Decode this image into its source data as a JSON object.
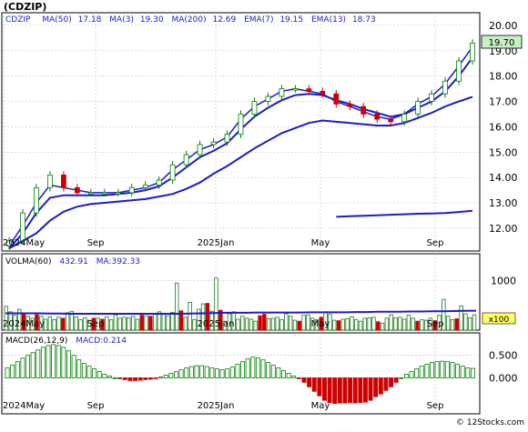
{
  "header": {
    "symbol": "(CDZIP)"
  },
  "footer": {
    "credit": "© 12Stocks.com"
  },
  "price_panel": {
    "ticker_label": "CDZIP",
    "indicators": [
      {
        "name": "MA(50)",
        "value": "17.18"
      },
      {
        "name": "MA(3)",
        "value": "19.30"
      },
      {
        "name": "MA(200)",
        "value": "12.69"
      },
      {
        "name": "EMA(7)",
        "value": "19.15"
      },
      {
        "name": "EMA(13)",
        "value": "18.73"
      }
    ],
    "last_price": "19.70"
  },
  "volume_panel": {
    "label": "VOLMA(60)",
    "value": "432.91",
    "ma_label": "MA:392.33",
    "scale": "x100"
  },
  "macd_panel": {
    "label": "MACD(26,12,9)",
    "value_label": "MACD:0.214"
  },
  "colors": {
    "up": "#008000",
    "down": "#cc0000",
    "ma_blue": "#1c1ccc",
    "volume_up": "#1a7a1a",
    "grid": "#c8c8c8",
    "price_box": "#c8f0c8"
  },
  "chart_data": [
    {
      "type": "line",
      "title": "CDZIP",
      "x_tick_labels": [
        "2024May",
        "Sep",
        "2025Jan",
        "May",
        "Sep"
      ],
      "y_tick_labels": [
        "12.00",
        "13.00",
        "14.00",
        "15.00",
        "16.00",
        "17.00",
        "18.00",
        "19.00",
        "20.00"
      ],
      "ylim": [
        11.1,
        20.5
      ],
      "x": [
        "2024-05-01",
        "2024-05-15",
        "2024-06-01",
        "2024-06-15",
        "2024-07-01",
        "2024-07-15",
        "2024-08-01",
        "2024-08-15",
        "2024-09-01",
        "2024-09-15",
        "2024-10-01",
        "2024-10-15",
        "2024-11-01",
        "2024-11-15",
        "2024-12-01",
        "2024-12-15",
        "2025-01-01",
        "2025-01-15",
        "2025-02-01",
        "2025-02-15",
        "2025-03-01",
        "2025-03-15",
        "2025-04-01",
        "2025-04-15",
        "2025-05-01",
        "2025-05-15",
        "2025-06-01",
        "2025-06-15",
        "2025-07-01",
        "2025-07-15",
        "2025-08-01",
        "2025-08-15",
        "2025-09-01",
        "2025-09-15",
        "2025-10-01"
      ],
      "series": [
        {
          "name": "Close",
          "values": [
            11.5,
            12.6,
            13.6,
            14.1,
            13.6,
            13.4,
            13.4,
            13.4,
            13.4,
            13.6,
            13.7,
            13.9,
            14.5,
            14.9,
            15.3,
            15.4,
            15.7,
            16.5,
            17.0,
            17.2,
            17.5,
            17.5,
            17.4,
            17.3,
            16.9,
            16.8,
            16.5,
            16.3,
            16.2,
            16.5,
            17.0,
            17.3,
            17.8,
            18.6,
            19.3
          ]
        },
        {
          "name": "EMA(7)",
          "values": [
            11.3,
            12.1,
            13.0,
            13.7,
            13.6,
            13.5,
            13.4,
            13.4,
            13.4,
            13.5,
            13.6,
            13.8,
            14.3,
            14.7,
            15.1,
            15.3,
            15.6,
            16.3,
            16.8,
            17.1,
            17.4,
            17.5,
            17.4,
            17.3,
            17.0,
            16.8,
            16.6,
            16.4,
            16.3,
            16.5,
            16.9,
            17.2,
            17.7,
            18.4,
            19.15
          ]
        },
        {
          "name": "EMA(13)",
          "values": [
            11.2,
            11.8,
            12.6,
            13.2,
            13.3,
            13.3,
            13.3,
            13.3,
            13.35,
            13.4,
            13.5,
            13.65,
            14.0,
            14.4,
            14.8,
            15.05,
            15.35,
            15.9,
            16.4,
            16.75,
            17.05,
            17.25,
            17.3,
            17.25,
            17.05,
            16.9,
            16.7,
            16.55,
            16.4,
            16.5,
            16.75,
            17.0,
            17.4,
            18.0,
            18.73
          ]
        },
        {
          "name": "MA(50)",
          "values": [
            11.2,
            11.5,
            11.8,
            12.3,
            12.65,
            12.85,
            12.95,
            13.0,
            13.05,
            13.1,
            13.15,
            13.25,
            13.35,
            13.55,
            13.8,
            14.15,
            14.45,
            14.8,
            15.15,
            15.45,
            15.75,
            15.95,
            16.15,
            16.25,
            16.2,
            16.15,
            16.1,
            16.05,
            16.05,
            16.15,
            16.35,
            16.55,
            16.8,
            17.0,
            17.18
          ]
        },
        {
          "name": "MA(200)",
          "values": [
            null,
            null,
            null,
            null,
            null,
            null,
            null,
            null,
            null,
            null,
            null,
            null,
            null,
            null,
            null,
            null,
            null,
            null,
            null,
            null,
            null,
            null,
            null,
            null,
            12.45,
            12.47,
            12.49,
            12.51,
            12.53,
            12.55,
            12.57,
            12.58,
            12.6,
            12.64,
            12.69
          ]
        }
      ]
    },
    {
      "type": "bar",
      "title": "VOLMA(60)",
      "y_tick_labels": [
        "1000"
      ],
      "ylim": [
        0,
        1540
      ],
      "values": [
        480,
        370,
        300,
        420,
        330,
        280,
        240,
        310,
        280,
        220,
        270,
        210,
        260,
        240,
        350,
        380,
        270,
        210,
        250,
        200,
        240,
        240,
        220,
        270,
        210,
        310,
        240,
        260,
        250,
        280,
        220,
        300,
        290,
        280,
        320,
        370,
        330,
        290,
        360,
        950,
        390,
        260,
        560,
        210,
        420,
        530,
        540,
        380,
        1050,
        400,
        180,
        330,
        370,
        220,
        280,
        240,
        220,
        180,
        290,
        320,
        230,
        240,
        260,
        210,
        330,
        280,
        200,
        180,
        300,
        310,
        240,
        210,
        260,
        370,
        320,
        200,
        190,
        220,
        230,
        270,
        210,
        180,
        240,
        250,
        260,
        170,
        140,
        240,
        310,
        250,
        260,
        220,
        300,
        240,
        180,
        210,
        200,
        240,
        190,
        300,
        620,
        280,
        210,
        230,
        490,
        330,
        250,
        310
      ],
      "ma_values": [
        340,
        340,
        340,
        340,
        335,
        335,
        330,
        330,
        330,
        330,
        330,
        330,
        330,
        330,
        330,
        330,
        330,
        335,
        340,
        345,
        350,
        350,
        350,
        355,
        355,
        355,
        355,
        355,
        360,
        360,
        360,
        360,
        365,
        365,
        370,
        370,
        370,
        375,
        375,
        380,
        380,
        385,
        390,
        392
      ]
    },
    {
      "type": "bar",
      "title": "MACD(26,12,9)",
      "y_tick_labels": [
        "0.500",
        "0.000"
      ],
      "ylim": [
        -0.8,
        1.0
      ],
      "values": [
        0.22,
        0.28,
        0.36,
        0.44,
        0.5,
        0.56,
        0.62,
        0.68,
        0.72,
        0.74,
        0.72,
        0.68,
        0.6,
        0.5,
        0.4,
        0.32,
        0.26,
        0.2,
        0.14,
        0.08,
        0.04,
        0.0,
        -0.02,
        -0.04,
        -0.06,
        -0.06,
        -0.05,
        -0.04,
        -0.03,
        -0.02,
        0.02,
        0.06,
        0.1,
        0.14,
        0.18,
        0.22,
        0.25,
        0.27,
        0.27,
        0.25,
        0.22,
        0.2,
        0.18,
        0.2,
        0.24,
        0.3,
        0.36,
        0.42,
        0.46,
        0.44,
        0.4,
        0.34,
        0.28,
        0.22,
        0.16,
        0.1,
        0.04,
        -0.02,
        -0.1,
        -0.2,
        -0.3,
        -0.4,
        -0.5,
        -0.55,
        -0.57,
        -0.56,
        -0.56,
        -0.55,
        -0.56,
        -0.55,
        -0.54,
        -0.5,
        -0.42,
        -0.36,
        -0.28,
        -0.2,
        -0.1,
        0.0,
        0.08,
        0.14,
        0.2,
        0.26,
        0.3,
        0.34,
        0.36,
        0.37,
        0.36,
        0.34,
        0.3,
        0.26,
        0.22,
        0.21
      ]
    }
  ]
}
